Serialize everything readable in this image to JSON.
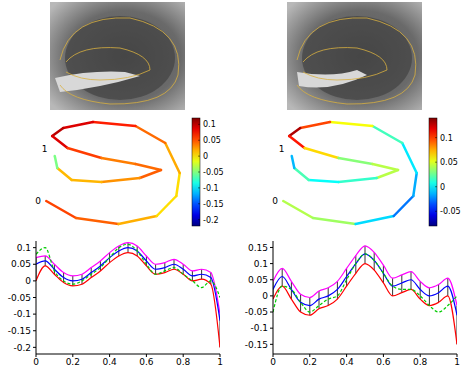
{
  "chart_data": [
    {
      "type": "line",
      "xlim": [
        0,
        1
      ],
      "xticks": [
        0,
        0.2,
        0.4,
        0.6,
        0.8,
        1
      ],
      "ylim": [
        -0.22,
        0.12
      ],
      "yticks": [
        -0.2,
        -0.15,
        -0.1,
        -0.05,
        0,
        0.05,
        0.1
      ],
      "x": [
        0,
        0.05,
        0.1,
        0.15,
        0.2,
        0.25,
        0.3,
        0.35,
        0.4,
        0.45,
        0.5,
        0.55,
        0.6,
        0.65,
        0.7,
        0.75,
        0.8,
        0.85,
        0.9,
        0.95,
        1
      ],
      "series": [
        {
          "color": "#ff00ff",
          "line_style": "solid",
          "values": [
            0.07,
            0.075,
            0.05,
            0.025,
            0.015,
            0.02,
            0.04,
            0.06,
            0.085,
            0.105,
            0.115,
            0.105,
            0.075,
            0.05,
            0.055,
            0.065,
            0.05,
            0.03,
            0.035,
            0.025,
            -0.1
          ]
        },
        {
          "color": "#0000ff",
          "line_style": "solid",
          "values": [
            0.05,
            0.06,
            0.035,
            0.01,
            0.0,
            0.005,
            0.025,
            0.045,
            0.07,
            0.09,
            0.1,
            0.09,
            0.06,
            0.035,
            0.04,
            0.05,
            0.035,
            0.015,
            0.02,
            0.01,
            -0.12
          ]
        },
        {
          "color": "#ff0000",
          "line_style": "solid",
          "values": [
            0.0,
            0.045,
            0.02,
            -0.005,
            -0.015,
            -0.01,
            0.01,
            0.03,
            0.055,
            0.075,
            0.085,
            0.075,
            0.045,
            0.02,
            0.025,
            0.035,
            0.02,
            0.0,
            0.005,
            -0.01,
            -0.2
          ]
        },
        {
          "color": "#00cc00",
          "line_style": "dashed",
          "values": [
            0.08,
            0.1,
            0.03,
            0.0,
            -0.01,
            0.0,
            0.02,
            0.04,
            0.07,
            0.1,
            0.11,
            0.09,
            0.05,
            0.02,
            0.03,
            0.04,
            0.02,
            0.0,
            -0.02,
            0.0,
            -0.05
          ]
        }
      ]
    },
    {
      "type": "line",
      "xlim": [
        0,
        1
      ],
      "xticks": [
        0,
        0.2,
        0.4,
        0.6,
        0.8,
        1
      ],
      "ylim": [
        -0.18,
        0.17
      ],
      "yticks": [
        -0.15,
        -0.1,
        -0.05,
        0,
        0.05,
        0.1,
        0.15
      ],
      "x": [
        0,
        0.05,
        0.1,
        0.15,
        0.2,
        0.25,
        0.3,
        0.35,
        0.4,
        0.45,
        0.5,
        0.55,
        0.6,
        0.65,
        0.7,
        0.75,
        0.8,
        0.85,
        0.9,
        0.95,
        1
      ],
      "series": [
        {
          "color": "#ff00ff",
          "line_style": "solid",
          "values": [
            0.045,
            0.085,
            0.045,
            0.005,
            -0.005,
            0.015,
            0.025,
            0.045,
            0.085,
            0.125,
            0.155,
            0.135,
            0.095,
            0.055,
            0.065,
            0.075,
            0.045,
            0.025,
            0.035,
            0.055,
            -0.03
          ]
        },
        {
          "color": "#0000ff",
          "line_style": "solid",
          "values": [
            0.02,
            0.06,
            0.02,
            -0.02,
            -0.03,
            -0.01,
            0.0,
            0.02,
            0.06,
            0.1,
            0.13,
            0.11,
            0.07,
            0.03,
            0.04,
            0.05,
            0.02,
            0.0,
            0.01,
            0.03,
            -0.06
          ]
        },
        {
          "color": "#ff0000",
          "line_style": "solid",
          "values": [
            -0.01,
            0.03,
            -0.01,
            -0.05,
            -0.06,
            -0.04,
            -0.03,
            -0.01,
            0.03,
            0.07,
            0.1,
            0.08,
            0.04,
            0.0,
            0.01,
            0.02,
            -0.01,
            -0.03,
            -0.02,
            0.0,
            -0.15
          ]
        },
        {
          "color": "#00cc00",
          "line_style": "dashed",
          "values": [
            -0.05,
            0.03,
            0.02,
            -0.02,
            -0.05,
            -0.03,
            -0.01,
            0.0,
            0.05,
            0.1,
            0.13,
            0.11,
            0.07,
            0.03,
            0.02,
            0.02,
            0.0,
            -0.03,
            -0.05,
            -0.03,
            0.0
          ]
        }
      ]
    }
  ],
  "color_bars": [
    {
      "range": [
        -0.22,
        0.12
      ],
      "ticks": [
        0.1,
        0.05,
        0,
        -0.05,
        -0.1,
        -0.15,
        -0.2
      ]
    },
    {
      "range": [
        -0.08,
        0.14
      ],
      "ticks": [
        0.1,
        0.05,
        0,
        -0.05
      ]
    }
  ],
  "contour_labels": [
    "0",
    "1"
  ]
}
